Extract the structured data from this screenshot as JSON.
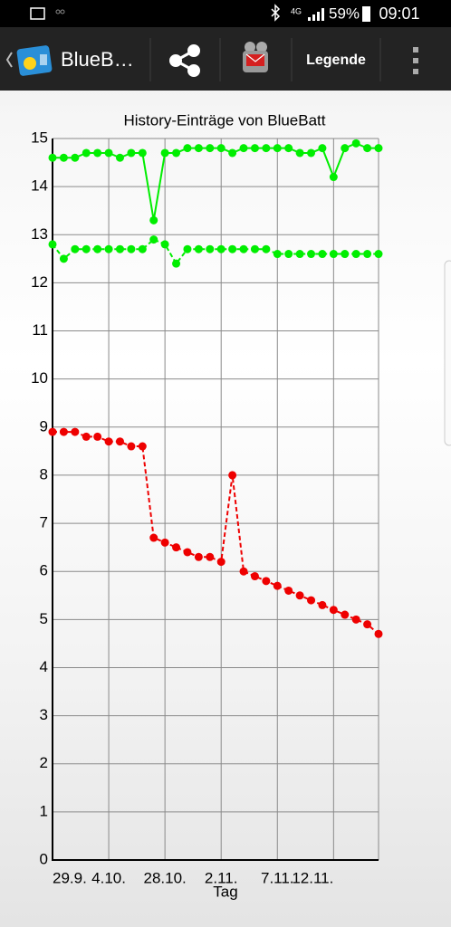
{
  "status_bar": {
    "network": "4G",
    "battery": "59%",
    "time": "09:01"
  },
  "toolbar": {
    "title": "BlueB…",
    "button": "Legende"
  },
  "chart_data": {
    "type": "line",
    "title": "History-Einträge von BlueBatt",
    "x_label": "Tag",
    "categories": [
      "29.9.",
      null,
      null,
      null,
      null,
      "4.10.",
      null,
      null,
      null,
      null,
      "28.10.",
      null,
      null,
      null,
      null,
      "2.11.",
      null,
      null,
      null,
      null,
      "7.11.",
      null,
      null,
      null,
      null,
      "12.11.",
      null,
      null,
      null,
      null
    ],
    "series": [
      {
        "color": "#00ee00",
        "line_style": "solid",
        "values": [
          14.6,
          14.6,
          14.6,
          14.7,
          14.7,
          14.7,
          14.6,
          14.7,
          14.7,
          13.3,
          14.7,
          14.7,
          14.8,
          14.8,
          14.8,
          14.8,
          14.7,
          14.8,
          14.8,
          14.8,
          14.8,
          14.8,
          14.7,
          14.7,
          14.8,
          14.2,
          14.8,
          14.9,
          14.8,
          14.8
        ]
      },
      {
        "color": "#00ee00",
        "line_style": "dashed",
        "values": [
          12.8,
          12.5,
          12.7,
          12.7,
          12.7,
          12.7,
          12.7,
          12.7,
          12.7,
          12.9,
          12.8,
          12.4,
          12.7,
          12.7,
          12.7,
          12.7,
          12.7,
          12.7,
          12.7,
          12.7,
          12.6,
          12.6,
          12.6,
          12.6,
          12.6,
          12.6,
          12.6,
          12.6,
          12.6,
          12.6
        ]
      },
      {
        "color": "#ee0000",
        "line_style": "dashed",
        "values": [
          8.9,
          8.9,
          8.9,
          8.8,
          8.8,
          8.7,
          8.7,
          8.6,
          8.6,
          6.7,
          6.6,
          6.5,
          6.4,
          6.3,
          6.3,
          6.2,
          8.0,
          6.0,
          5.9,
          5.8,
          5.7,
          5.6,
          5.5,
          5.4,
          5.3,
          5.2,
          5.1,
          5.0,
          4.9,
          4.7
        ]
      }
    ],
    "ylim": [
      0,
      15
    ],
    "yticks": [
      0,
      1,
      2,
      3,
      4,
      5,
      6,
      7,
      8,
      9,
      10,
      11,
      12,
      13,
      14,
      15
    ],
    "grid": true
  }
}
